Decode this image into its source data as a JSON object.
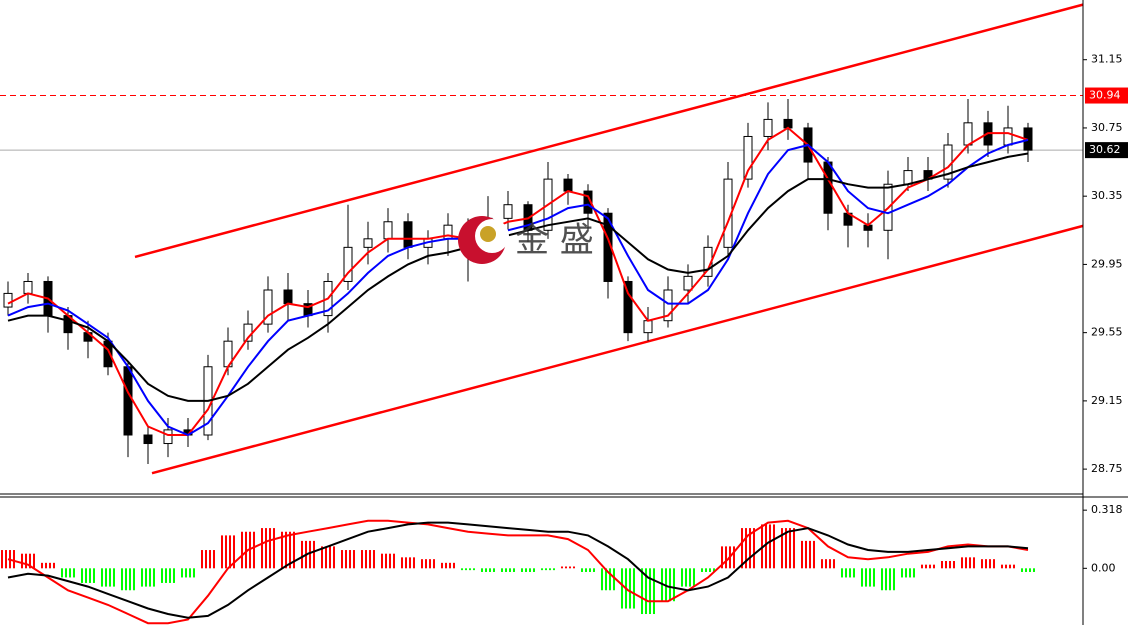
{
  "chart_data": [
    {
      "type": "candlestick",
      "watermark": "金 盛",
      "xlim": [
        -0.4,
        53.75
      ],
      "ylim": [
        28.61,
        31.5
      ],
      "yticks": [
        31.15,
        30.75,
        30.35,
        29.95,
        29.55,
        29.15,
        28.75
      ],
      "up_color": "#ffffff",
      "down_color": "#000000",
      "open": [
        29.7,
        29.78,
        29.85,
        29.65,
        29.55,
        29.5,
        29.35,
        28.95,
        28.9,
        28.98,
        28.95,
        29.35,
        29.5,
        29.6,
        29.8,
        29.72,
        29.65,
        29.85,
        30.05,
        30.1,
        30.2,
        30.05,
        30.1,
        30.18,
        30.05,
        30.22,
        30.3,
        30.15,
        30.45,
        30.38,
        30.25,
        29.85,
        29.55,
        29.62,
        29.8,
        29.88,
        30.05,
        30.45,
        30.7,
        30.8,
        30.75,
        30.55,
        30.25,
        30.18,
        30.15,
        30.42,
        30.5,
        30.45,
        30.65,
        30.78,
        30.65,
        30.75
      ],
      "high": [
        29.85,
        29.9,
        29.88,
        29.7,
        29.62,
        29.55,
        29.38,
        29.0,
        29.05,
        29.05,
        29.42,
        29.58,
        29.68,
        29.88,
        29.9,
        29.8,
        29.9,
        30.3,
        30.2,
        30.28,
        30.25,
        30.15,
        30.25,
        30.22,
        30.35,
        30.38,
        30.32,
        30.55,
        30.48,
        30.42,
        30.28,
        29.88,
        29.7,
        29.88,
        29.95,
        30.12,
        30.55,
        30.78,
        30.9,
        30.92,
        30.78,
        30.58,
        30.3,
        30.25,
        30.5,
        30.58,
        30.58,
        30.72,
        30.92,
        30.85,
        30.88,
        30.78
      ],
      "low": [
        29.65,
        29.72,
        29.55,
        29.45,
        29.4,
        29.3,
        28.82,
        28.78,
        28.82,
        28.88,
        28.92,
        29.3,
        29.45,
        29.55,
        29.62,
        29.58,
        29.55,
        29.8,
        29.95,
        30.02,
        29.98,
        29.95,
        30.0,
        29.85,
        30.0,
        30.15,
        30.08,
        30.1,
        30.3,
        30.15,
        29.75,
        29.5,
        29.5,
        29.58,
        29.72,
        29.82,
        30.0,
        30.4,
        30.62,
        30.68,
        30.45,
        30.15,
        30.05,
        30.05,
        29.98,
        30.38,
        30.38,
        30.4,
        30.6,
        30.58,
        30.6,
        30.55
      ],
      "close": [
        29.78,
        29.85,
        29.65,
        29.55,
        29.5,
        29.35,
        28.95,
        28.9,
        28.98,
        28.95,
        29.35,
        29.5,
        29.6,
        29.8,
        29.72,
        29.65,
        29.85,
        30.05,
        30.1,
        30.2,
        30.05,
        30.1,
        30.18,
        30.05,
        30.22,
        30.3,
        30.15,
        30.45,
        30.38,
        30.25,
        29.85,
        29.55,
        29.62,
        29.8,
        29.88,
        30.05,
        30.45,
        30.7,
        30.8,
        30.75,
        30.55,
        30.25,
        30.18,
        30.15,
        30.42,
        30.5,
        30.45,
        30.65,
        30.78,
        30.65,
        30.75,
        30.62
      ],
      "series": [
        {
          "color": "#ff0000",
          "values": [
            29.72,
            29.78,
            29.75,
            29.65,
            29.55,
            29.45,
            29.2,
            29.0,
            28.95,
            28.95,
            29.1,
            29.35,
            29.52,
            29.65,
            29.72,
            29.7,
            29.75,
            29.9,
            30.02,
            30.1,
            30.1,
            30.1,
            30.12,
            30.1,
            30.15,
            30.2,
            30.22,
            30.3,
            30.38,
            30.35,
            30.1,
            29.78,
            29.62,
            29.65,
            29.78,
            29.92,
            30.2,
            30.5,
            30.68,
            30.75,
            30.65,
            30.45,
            30.25,
            30.18,
            30.28,
            30.4,
            30.45,
            30.52,
            30.65,
            30.72,
            30.72,
            30.68
          ]
        },
        {
          "color": "#0000ff",
          "values": [
            29.65,
            29.7,
            29.72,
            29.68,
            29.6,
            29.52,
            29.35,
            29.15,
            29.0,
            28.95,
            29.02,
            29.18,
            29.35,
            29.5,
            29.62,
            29.65,
            29.68,
            29.78,
            29.9,
            30.0,
            30.05,
            30.08,
            30.1,
            30.1,
            30.12,
            30.15,
            30.18,
            30.22,
            30.28,
            30.3,
            30.22,
            30.0,
            29.8,
            29.72,
            29.72,
            29.8,
            29.98,
            30.25,
            30.48,
            30.62,
            30.65,
            30.55,
            30.38,
            30.28,
            30.25,
            30.3,
            30.35,
            30.42,
            30.52,
            30.6,
            30.65,
            30.68
          ]
        },
        {
          "color": "#000000",
          "values": [
            29.62,
            29.65,
            29.65,
            29.62,
            29.58,
            29.5,
            29.38,
            29.25,
            29.18,
            29.15,
            29.15,
            29.18,
            29.25,
            29.35,
            29.45,
            29.52,
            29.6,
            29.7,
            29.8,
            29.88,
            29.95,
            30.0,
            30.02,
            30.05,
            30.08,
            30.12,
            30.15,
            30.18,
            30.2,
            30.22,
            30.18,
            30.08,
            29.98,
            29.92,
            29.9,
            29.92,
            30.0,
            30.15,
            30.28,
            30.38,
            30.45,
            30.45,
            30.42,
            30.4,
            30.4,
            30.42,
            30.45,
            30.48,
            30.52,
            30.55,
            30.58,
            30.6
          ]
        }
      ],
      "trendlines": [
        {
          "color": "#ff0000",
          "x": [
            6.35,
            53.75
          ],
          "y": [
            29.994,
            31.473
          ]
        },
        {
          "color": "#ff0000",
          "x": [
            7.2,
            53.75
          ],
          "y": [
            28.726,
            30.176
          ]
        }
      ],
      "levels": [
        {
          "value": 30.94,
          "color": "#ff0000",
          "dashed": true
        },
        {
          "value": 30.62,
          "color": "#000000",
          "dashed": false
        }
      ]
    },
    {
      "type": "macd",
      "xlim": [
        -0.4,
        53.75
      ],
      "ylim": [
        -0.31,
        0.39
      ],
      "yticks": [
        0.318,
        {
          "value": 0,
          "label": "0.00"
        }
      ],
      "up_color": "#ff0000",
      "down_color": "#00ff00",
      "values": [
        0.1,
        0.08,
        0.03,
        -0.05,
        -0.08,
        -0.1,
        -0.12,
        -0.1,
        -0.08,
        -0.05,
        0.1,
        0.18,
        0.2,
        0.22,
        0.2,
        0.15,
        0.12,
        0.1,
        0.1,
        0.08,
        0.06,
        0.05,
        0.03,
        -0.01,
        -0.02,
        -0.02,
        -0.02,
        -0.01,
        0.01,
        -0.02,
        -0.12,
        -0.22,
        -0.25,
        -0.18,
        -0.1,
        -0.02,
        0.12,
        0.22,
        0.24,
        0.22,
        0.15,
        0.05,
        -0.05,
        -0.1,
        -0.12,
        -0.05,
        0.02,
        0.04,
        0.06,
        0.05,
        0.02,
        -0.02
      ],
      "series": [
        {
          "color": "#ff0000",
          "values": [
            0.05,
            0.02,
            -0.05,
            -0.12,
            -0.16,
            -0.2,
            -0.25,
            -0.3,
            -0.3,
            -0.28,
            -0.15,
            0.0,
            0.1,
            0.15,
            0.18,
            0.2,
            0.22,
            0.24,
            0.26,
            0.26,
            0.25,
            0.24,
            0.22,
            0.2,
            0.19,
            0.18,
            0.18,
            0.18,
            0.16,
            0.1,
            -0.02,
            -0.12,
            -0.18,
            -0.18,
            -0.12,
            -0.05,
            0.05,
            0.18,
            0.25,
            0.26,
            0.22,
            0.12,
            0.06,
            0.05,
            0.06,
            0.08,
            0.09,
            0.12,
            0.13,
            0.12,
            0.12,
            0.1
          ]
        },
        {
          "color": "#000000",
          "values": [
            -0.05,
            -0.03,
            -0.04,
            -0.07,
            -0.1,
            -0.14,
            -0.18,
            -0.22,
            -0.25,
            -0.27,
            -0.26,
            -0.2,
            -0.12,
            -0.05,
            0.02,
            0.08,
            0.12,
            0.16,
            0.2,
            0.22,
            0.24,
            0.25,
            0.25,
            0.24,
            0.23,
            0.22,
            0.21,
            0.2,
            0.2,
            0.18,
            0.12,
            0.05,
            -0.05,
            -0.1,
            -0.12,
            -0.1,
            -0.05,
            0.05,
            0.14,
            0.2,
            0.22,
            0.18,
            0.13,
            0.1,
            0.09,
            0.09,
            0.1,
            0.11,
            0.12,
            0.12,
            0.12,
            0.11
          ]
        }
      ]
    }
  ]
}
